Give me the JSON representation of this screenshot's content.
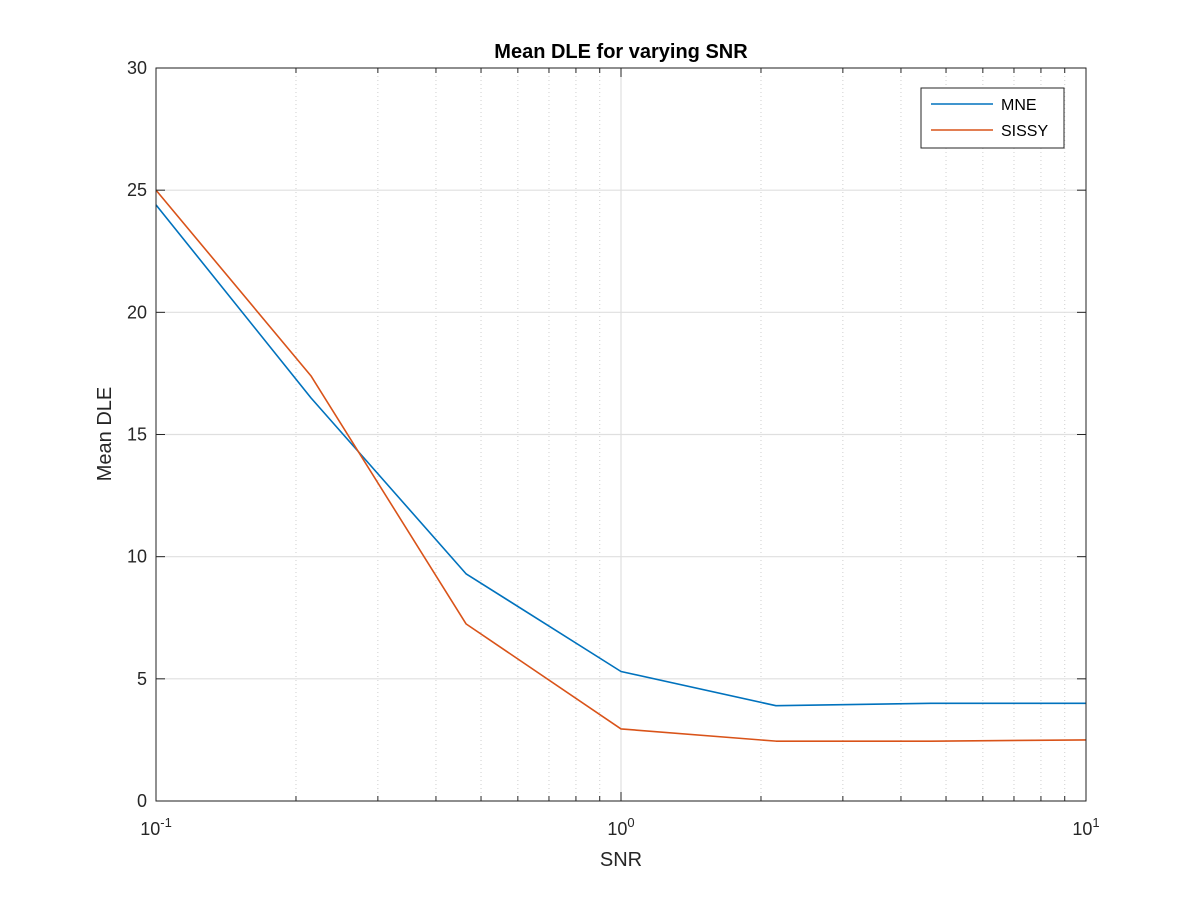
{
  "chart_data": {
    "type": "line",
    "title": "Mean DLE for varying SNR",
    "xlabel": "SNR",
    "ylabel": "Mean DLE",
    "xscale": "log",
    "xlim": [
      0.1,
      10
    ],
    "ylim": [
      0,
      30
    ],
    "xticks": [
      {
        "value": 0.1,
        "base": "10",
        "exp": "-1"
      },
      {
        "value": 1,
        "base": "10",
        "exp": "0"
      },
      {
        "value": 10,
        "base": "10",
        "exp": "1"
      }
    ],
    "yticks": [
      0,
      5,
      10,
      15,
      20,
      25,
      30
    ],
    "grid": true,
    "minor_grid": true,
    "legend_position": "top-right",
    "x": [
      0.1,
      0.2154,
      0.4642,
      1.0,
      2.154,
      4.642,
      10.0
    ],
    "series": [
      {
        "name": "MNE",
        "color": "#0072BD",
        "values": [
          24.4,
          16.5,
          9.3,
          5.3,
          3.9,
          4.0,
          4.0
        ]
      },
      {
        "name": "SISSY",
        "color": "#D95319",
        "values": [
          25.0,
          17.4,
          7.25,
          2.95,
          2.45,
          2.45,
          2.5
        ]
      }
    ]
  }
}
